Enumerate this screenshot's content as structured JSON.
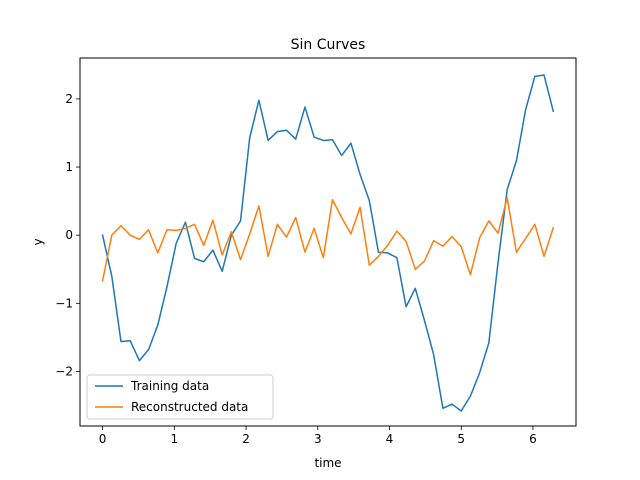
{
  "chart_data": {
    "type": "line",
    "title": "Sin Curves",
    "xlabel": "time",
    "ylabel": "y",
    "xlim": [
      -0.315,
      6.6
    ],
    "ylim": [
      -2.8,
      2.6
    ],
    "x_ticks": [
      0,
      1,
      2,
      3,
      4,
      5,
      6
    ],
    "x_tick_labels": [
      "0",
      "1",
      "2",
      "3",
      "4",
      "5",
      "6"
    ],
    "y_ticks": [
      -2,
      -1,
      0,
      1,
      2
    ],
    "y_tick_labels": [
      "−2",
      "−1",
      "0",
      "1",
      "2"
    ],
    "grid": false,
    "legend_placement": "lower-left",
    "x": [
      0.0,
      0.128,
      0.256,
      0.385,
      0.513,
      0.641,
      0.769,
      0.897,
      1.026,
      1.154,
      1.282,
      1.41,
      1.538,
      1.667,
      1.795,
      1.923,
      2.051,
      2.179,
      2.308,
      2.436,
      2.564,
      2.692,
      2.821,
      2.949,
      3.077,
      3.205,
      3.333,
      3.462,
      3.59,
      3.718,
      3.846,
      3.974,
      4.103,
      4.231,
      4.359,
      4.487,
      4.615,
      4.744,
      4.872,
      5.0,
      5.128,
      5.256,
      5.385,
      5.513,
      5.641,
      5.769,
      5.897,
      6.026,
      6.154,
      6.283
    ],
    "series": [
      {
        "name": "Training data",
        "color": "#1f77b4",
        "values": [
          0.0,
          -0.6,
          -1.56,
          -1.55,
          -1.84,
          -1.68,
          -1.32,
          -0.76,
          -0.12,
          0.19,
          -0.34,
          -0.39,
          -0.22,
          -0.53,
          0.0,
          0.21,
          1.43,
          1.98,
          1.39,
          1.52,
          1.54,
          1.41,
          1.88,
          1.44,
          1.39,
          1.4,
          1.17,
          1.35,
          0.89,
          0.51,
          -0.25,
          -0.26,
          -0.33,
          -1.05,
          -0.78,
          -1.25,
          -1.75,
          -2.54,
          -2.48,
          -2.58,
          -2.36,
          -2.02,
          -1.58,
          -0.4,
          0.67,
          1.09,
          1.84,
          2.33,
          2.35,
          1.82
        ]
      },
      {
        "name": "Reconstructed data",
        "color": "#ff7f0e",
        "values": [
          -0.67,
          0.0,
          0.14,
          0.0,
          -0.06,
          0.08,
          -0.26,
          0.08,
          0.07,
          0.1,
          0.16,
          -0.15,
          0.22,
          -0.29,
          0.05,
          -0.36,
          0.02,
          0.43,
          -0.31,
          0.16,
          -0.03,
          0.26,
          -0.25,
          0.1,
          -0.33,
          0.52,
          0.26,
          0.02,
          0.41,
          -0.44,
          -0.31,
          -0.15,
          0.06,
          -0.09,
          -0.5,
          -0.38,
          -0.08,
          -0.16,
          -0.02,
          -0.17,
          -0.58,
          -0.04,
          0.21,
          0.03,
          0.55,
          -0.25,
          -0.05,
          0.16,
          -0.31,
          0.11
        ]
      }
    ]
  }
}
